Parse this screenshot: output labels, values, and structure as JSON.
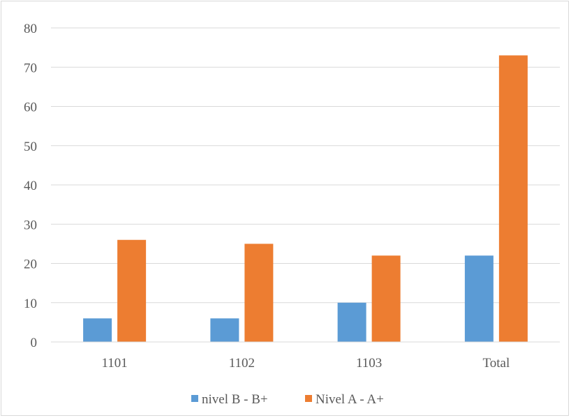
{
  "chart_data": {
    "type": "bar",
    "title": "",
    "xlabel": "",
    "ylabel": "",
    "categories": [
      "1101",
      "1102",
      "1103",
      "Total"
    ],
    "series": [
      {
        "name": "nivel B - B+",
        "color": "#5b9bd5",
        "values": [
          6,
          6,
          10,
          22
        ]
      },
      {
        "name": "Nivel A - A+",
        "color": "#ed7d31",
        "values": [
          26,
          25,
          22,
          73
        ]
      }
    ],
    "ylim": [
      0,
      80
    ],
    "yticks": [
      0,
      10,
      20,
      30,
      40,
      50,
      60,
      70,
      80
    ],
    "grid": true,
    "legend_position": "bottom"
  }
}
